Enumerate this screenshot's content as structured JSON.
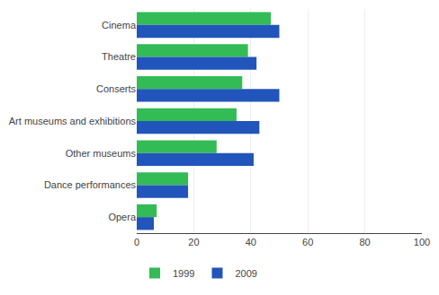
{
  "chart_data": {
    "type": "bar",
    "orientation": "horizontal",
    "categories": [
      "Cinema",
      "Theatre",
      "Conserts",
      "Art museums and exhibitions",
      "Other museums",
      "Dance performances",
      "Opera"
    ],
    "series": [
      {
        "name": "1999",
        "color": "#33bb55",
        "values": [
          47,
          39,
          37,
          35,
          28,
          18,
          7
        ]
      },
      {
        "name": "2009",
        "color": "#2255bb",
        "values": [
          50,
          42,
          50,
          43,
          41,
          18,
          6
        ]
      }
    ],
    "xlim": [
      0,
      100
    ],
    "xticks": [
      0,
      20,
      40,
      60,
      80,
      100
    ],
    "grid": true,
    "legend": "bottom left"
  }
}
